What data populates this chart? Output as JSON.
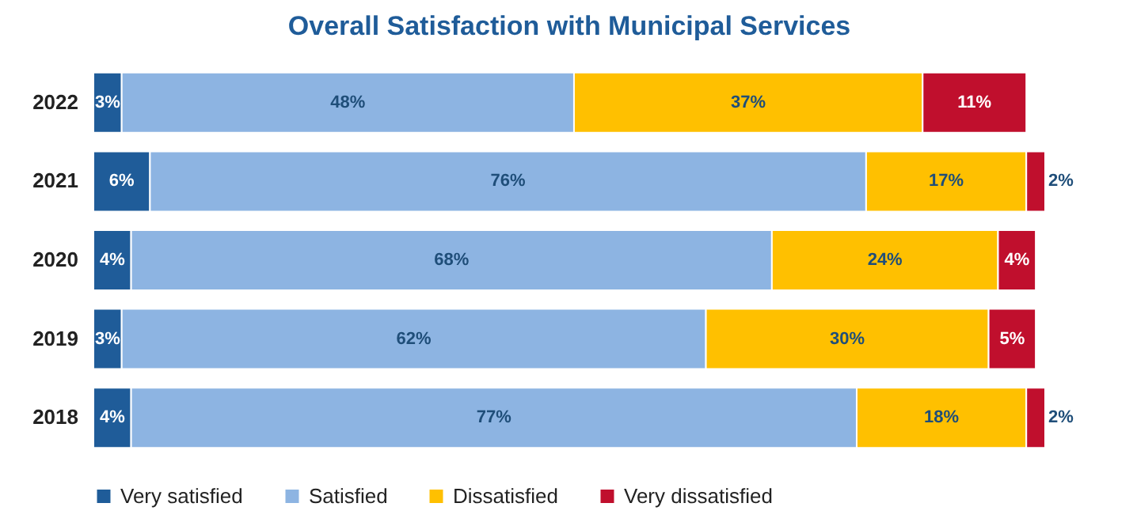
{
  "chart_data": {
    "type": "bar",
    "orientation": "horizontal",
    "stacked": true,
    "title": "Overall Satisfaction with Municipal Services",
    "categories": [
      "2022",
      "2021",
      "2020",
      "2019",
      "2018"
    ],
    "series": [
      {
        "name": "Very satisfied",
        "color": "#1f5c99",
        "values": [
          3,
          6,
          4,
          3,
          4
        ],
        "value_labels": [
          "3%",
          "6%",
          "4%",
          "3%",
          "4%"
        ]
      },
      {
        "name": "Satisfied",
        "color": "#8db4e2",
        "values": [
          48,
          76,
          68,
          62,
          77
        ],
        "value_labels": [
          "48%",
          "76%",
          "68%",
          "62%",
          "77%"
        ]
      },
      {
        "name": "Dissatisfied",
        "color": "#ffc000",
        "values": [
          37,
          17,
          24,
          30,
          18
        ],
        "value_labels": [
          "37%",
          "17%",
          "24%",
          "30%",
          "18%"
        ]
      },
      {
        "name": "Very dissatisfied",
        "color": "#c00f2d",
        "values": [
          11,
          2,
          4,
          5,
          2
        ],
        "value_labels": [
          "11%",
          "2%",
          "4%",
          "5%",
          "2%"
        ]
      }
    ],
    "legend": "bottom"
  }
}
